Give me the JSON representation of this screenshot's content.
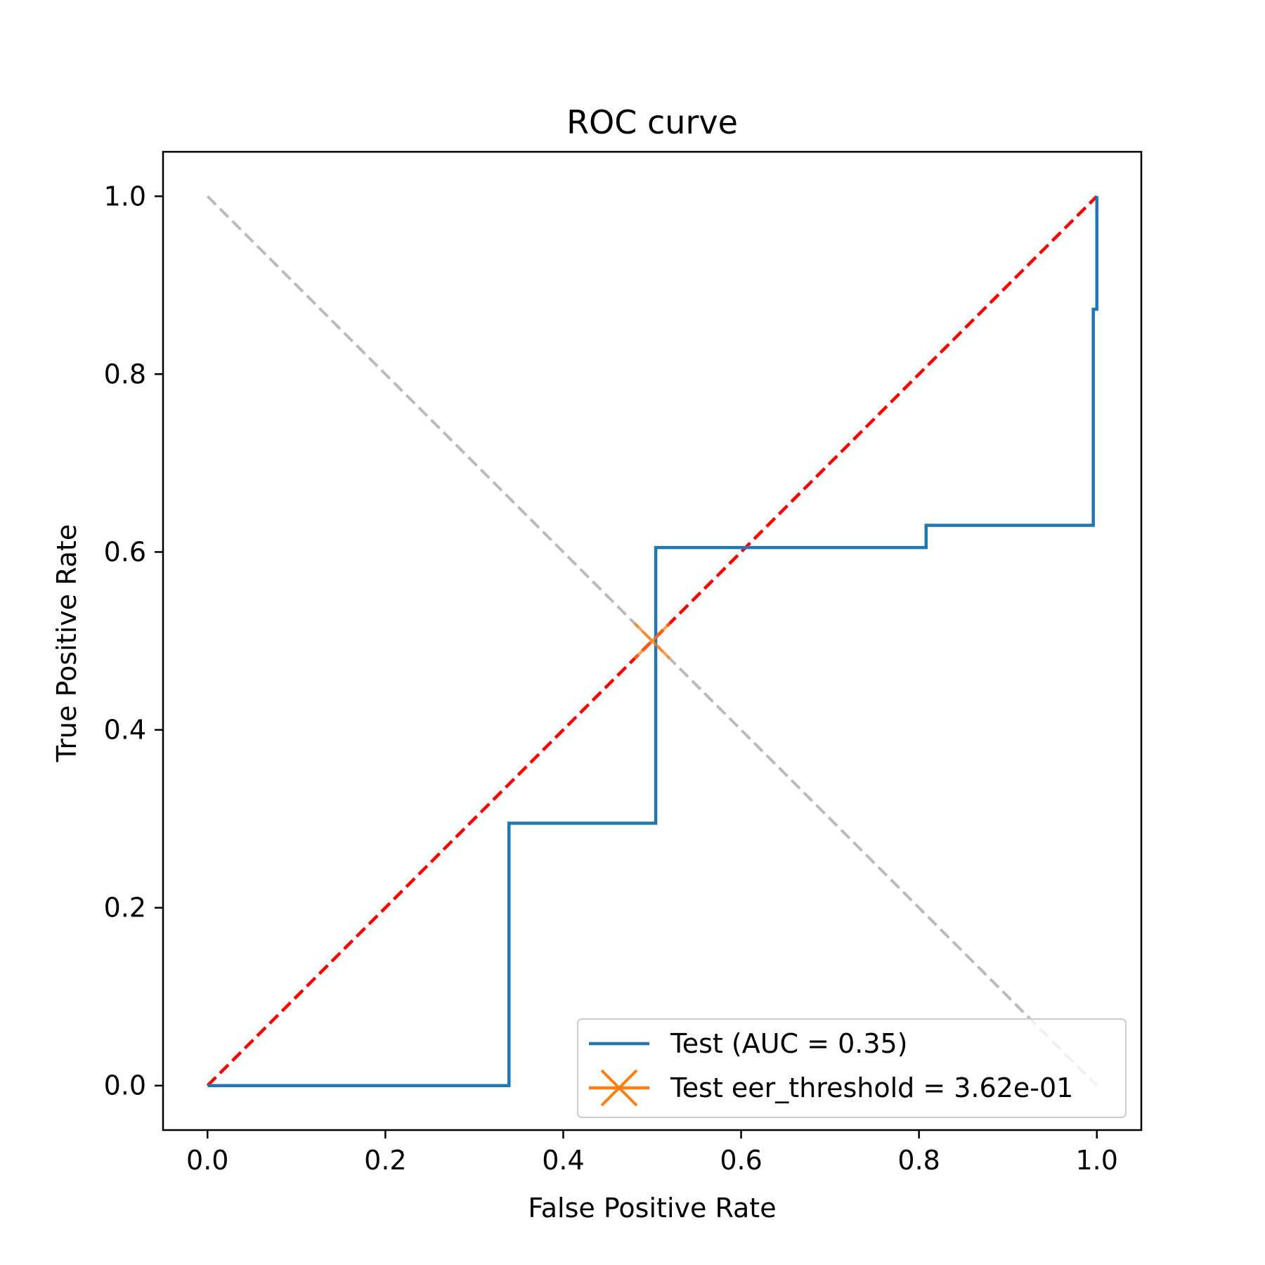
{
  "chart_data": {
    "type": "line",
    "title": "ROC curve",
    "xlabel": "False Positive Rate",
    "ylabel": "True Positive Rate",
    "xlim": [
      -0.05,
      1.05
    ],
    "ylim": [
      -0.05,
      1.05
    ],
    "xticks": [
      "0.0",
      "0.2",
      "0.4",
      "0.6",
      "0.8",
      "1.0"
    ],
    "yticks": [
      "0.0",
      "0.2",
      "0.4",
      "0.6",
      "0.8",
      "1.0"
    ],
    "grid": false,
    "legend_position": "lower-right",
    "series": [
      {
        "name": "Test (AUC = 0.35)",
        "kind": "step-line",
        "color": "#1f77b4",
        "x": [
          0.0,
          0.339,
          0.339,
          0.504,
          0.504,
          0.808,
          0.808,
          0.996,
          0.996,
          1.0,
          1.0
        ],
        "y": [
          0.0,
          0.0,
          0.295,
          0.295,
          0.605,
          0.605,
          0.63,
          0.63,
          0.873,
          0.873,
          1.0
        ]
      },
      {
        "name": "Test eer_threshold = 3.62e-01",
        "kind": "marker",
        "marker": "x",
        "color": "#ff7f0e",
        "x": [
          0.5
        ],
        "y": [
          0.5
        ]
      }
    ],
    "reference_lines": [
      {
        "kind": "diagonal",
        "color": "#ff0000",
        "style": "dashed",
        "x": [
          0,
          1
        ],
        "y": [
          0,
          1
        ]
      },
      {
        "kind": "anti-diagonal",
        "color": "#bbbbbb",
        "style": "dashed",
        "x": [
          0,
          1
        ],
        "y": [
          1,
          0
        ]
      }
    ]
  }
}
